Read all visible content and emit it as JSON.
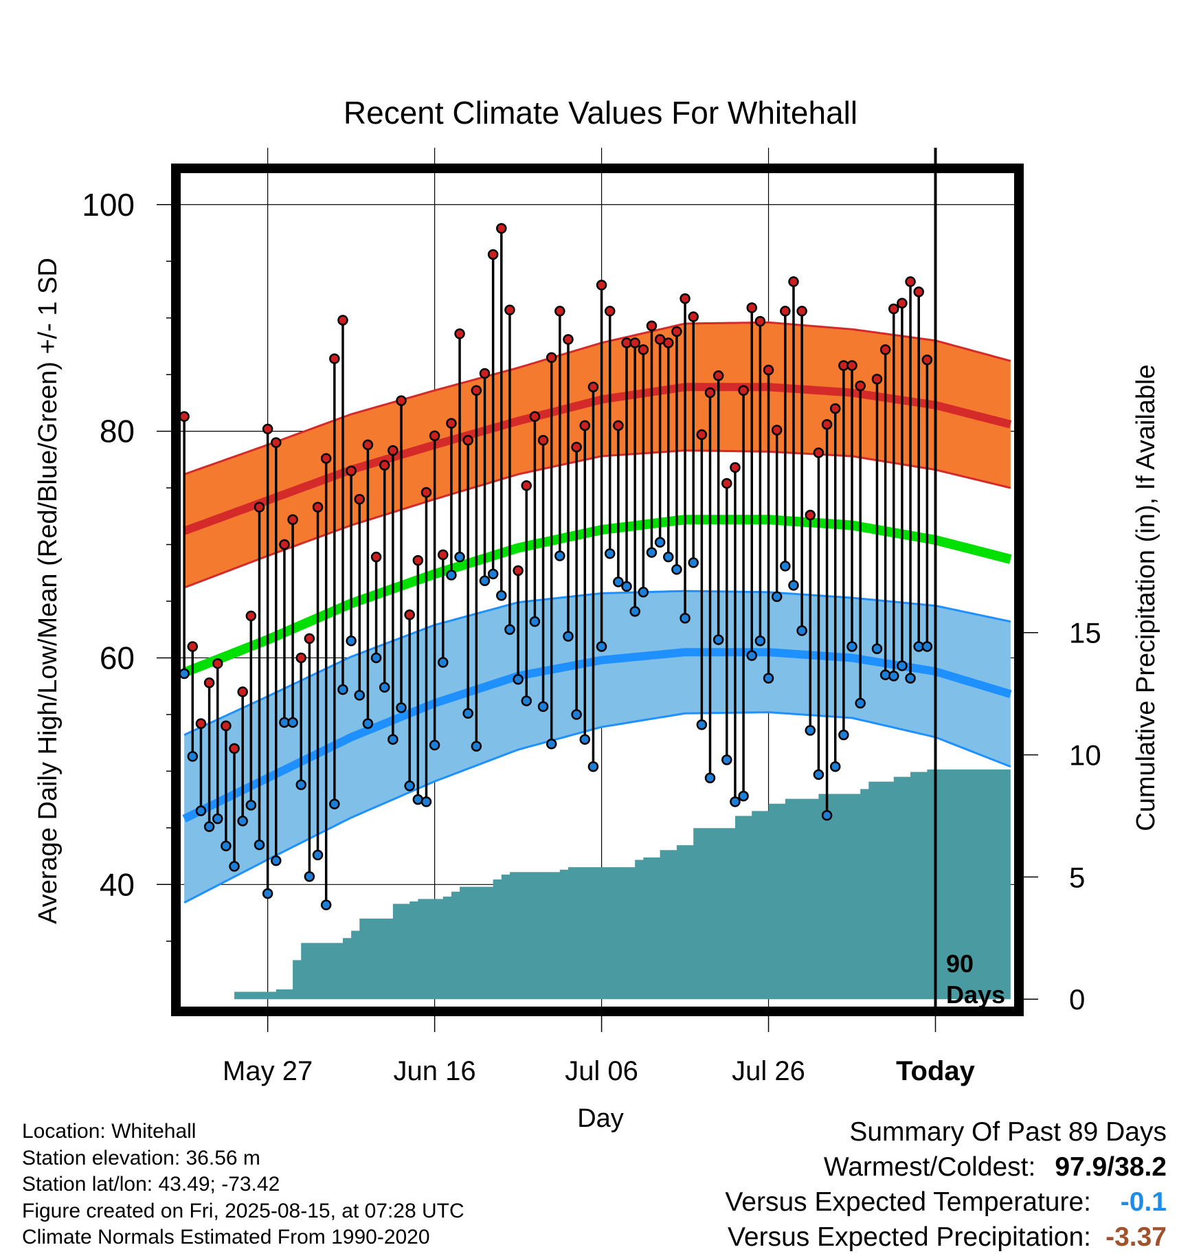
{
  "chart_data": {
    "type": "line",
    "title": "Recent Climate Values For Whitehall",
    "xlabel": "Day",
    "ylabel_left": "Average Daily High/Low/Mean (Red/Blue/Green) +/- 1 SD",
    "ylabel_right": "Cumulative Precipitation (in), If Available",
    "x_tick_labels": [
      "May 27",
      "Jun 16",
      "Jul 06",
      "Jul 26",
      "Today"
    ],
    "x_tick_days": [
      10,
      30,
      50,
      70,
      90
    ],
    "x_range_days": [
      -1,
      100
    ],
    "y_left_ticks": [
      "100",
      "80",
      "60",
      "40"
    ],
    "y_left_tick_values": [
      100,
      80,
      60,
      40
    ],
    "y_left_range": [
      28.8,
      103.2
    ],
    "y_right_ticks": [
      "15",
      "10",
      "5",
      "0"
    ],
    "y_right_tick_values": [
      15,
      10,
      5,
      0
    ],
    "y_right_range": [
      -0.5,
      34
    ],
    "today_marker_label_line1": "90",
    "today_marker_label_line2": "Days",
    "normals": {
      "days": [
        0,
        10,
        20,
        30,
        40,
        50,
        60,
        70,
        80,
        90,
        99
      ],
      "high_mean": [
        71.2,
        73.9,
        76.6,
        78.8,
        80.9,
        82.8,
        83.9,
        83.9,
        83.4,
        82.3,
        80.6
      ],
      "high_sd": [
        5.0,
        4.9,
        4.9,
        4.8,
        4.7,
        5.0,
        5.6,
        5.7,
        5.6,
        5.7,
        5.6
      ],
      "low_mean": [
        45.8,
        49.4,
        53.0,
        56.0,
        58.4,
        59.8,
        60.5,
        60.5,
        60.0,
        58.8,
        56.8
      ],
      "low_sd": [
        7.4,
        7.2,
        7.1,
        6.9,
        6.5,
        5.9,
        5.4,
        5.3,
        5.3,
        5.8,
        6.4
      ],
      "mean": [
        58.7,
        61.6,
        64.8,
        67.4,
        69.7,
        71.3,
        72.2,
        72.2,
        71.7,
        70.4,
        68.7
      ]
    },
    "series": [
      {
        "name": "High",
        "color": "#cc1f1f",
        "values": [
          81.3,
          61.0,
          54.2,
          57.8,
          59.5,
          54.0,
          52.0,
          57.0,
          63.7,
          73.3,
          80.2,
          79.0,
          70.0,
          72.2,
          60.0,
          61.7,
          73.3,
          77.6,
          86.4,
          89.8,
          76.5,
          74.0,
          78.8,
          68.9,
          77.0,
          78.3,
          82.7,
          63.8,
          68.6,
          74.6,
          79.6,
          69.1,
          80.7,
          88.6,
          79.2,
          83.6,
          85.1,
          95.6,
          97.9,
          90.7,
          67.7,
          75.2,
          81.3,
          79.2,
          86.5,
          90.6,
          88.1,
          78.6,
          80.5,
          83.9,
          92.9,
          90.6,
          80.5,
          87.8,
          87.8,
          87.2,
          89.3,
          88.1,
          87.8,
          88.8,
          91.7,
          90.1,
          79.7,
          83.4,
          84.9,
          75.4,
          76.8,
          83.6,
          90.9,
          89.7,
          85.4,
          80.1,
          90.6,
          93.2,
          90.6,
          72.6,
          78.1,
          80.6,
          82.0,
          85.8,
          85.8,
          84.0,
          null,
          84.6,
          87.2,
          90.8,
          91.3,
          93.2,
          92.3,
          86.3
        ],
        "unit": "°F"
      },
      {
        "name": "Low",
        "color": "#1e8ce6",
        "values": [
          58.6,
          51.3,
          46.5,
          45.1,
          45.8,
          43.4,
          41.6,
          45.6,
          47.0,
          43.5,
          39.2,
          42.1,
          54.3,
          54.3,
          48.8,
          40.7,
          42.6,
          38.2,
          47.1,
          57.2,
          61.5,
          56.7,
          54.2,
          60.0,
          57.4,
          52.8,
          55.6,
          48.7,
          47.5,
          47.3,
          52.3,
          59.6,
          67.3,
          68.9,
          55.1,
          52.2,
          66.8,
          67.4,
          65.5,
          62.5,
          58.1,
          56.2,
          63.2,
          55.7,
          52.4,
          69.0,
          61.9,
          55.0,
          52.8,
          50.4,
          61.0,
          69.2,
          66.7,
          66.3,
          64.1,
          65.8,
          69.3,
          70.2,
          68.9,
          67.8,
          63.5,
          68.4,
          54.1,
          49.4,
          61.6,
          51.0,
          47.3,
          47.8,
          60.2,
          61.5,
          58.2,
          65.4,
          68.1,
          66.4,
          62.4,
          53.6,
          49.7,
          46.1,
          50.4,
          53.2,
          61.0,
          56.0,
          null,
          60.8,
          58.5,
          58.4,
          59.3,
          58.2,
          61.0,
          61.0
        ],
        "unit": "°F"
      }
    ],
    "cumulative_precip": {
      "color": "#4a9aa2",
      "days": [
        4,
        6,
        11,
        13,
        14,
        19,
        20,
        21,
        25,
        27,
        28,
        31,
        32,
        33,
        37,
        38,
        39,
        45,
        46,
        48,
        54,
        55,
        57,
        59,
        61,
        66,
        68,
        70,
        72,
        76,
        81,
        82,
        85,
        87,
        89,
        99
      ],
      "values": [
        0.0,
        0.3,
        0.4,
        1.6,
        2.3,
        2.5,
        2.8,
        3.3,
        3.9,
        4.0,
        4.1,
        4.2,
        4.4,
        4.6,
        4.9,
        5.1,
        5.2,
        5.3,
        5.4,
        5.4,
        5.7,
        5.8,
        6.1,
        6.3,
        7.0,
        7.5,
        7.7,
        8.0,
        8.2,
        8.4,
        8.6,
        8.9,
        9.1,
        9.3,
        9.4,
        9.4
      ]
    },
    "grid": true
  },
  "station_info": {
    "location": "Location: Whitehall",
    "elevation": "Station elevation: 36.56 m",
    "latlon": "Station lat/lon: 43.49; -73.42",
    "created": "Figure created on Fri, 2025-08-15, at 07:28 UTC",
    "normals_period": "Climate Normals Estimated From 1990-2020"
  },
  "summary": {
    "heading": "Summary Of Past 89 Days",
    "extremes_label": "Warmest/Coldest:",
    "extremes_value": "97.9/38.2",
    "anomaly_temp_label": "Versus Expected Temperature:",
    "anomaly_temp_value": "-0.1",
    "anomaly_temp_color": "#1e8ce6",
    "anomaly_precip_label": "Versus Expected Precipitation:",
    "anomaly_precip_value": "-3.37",
    "anomaly_precip_color": "#a0522d"
  },
  "colors": {
    "high_band": "#f47a30",
    "high_line": "#d42a2a",
    "low_band": "#80c0e8",
    "low_line": "#1e90ff",
    "mean_line": "#00e000",
    "high_marker": "#cc1f1f",
    "low_marker": "#1e7fd8",
    "precip_fill": "#4a9aa2"
  }
}
